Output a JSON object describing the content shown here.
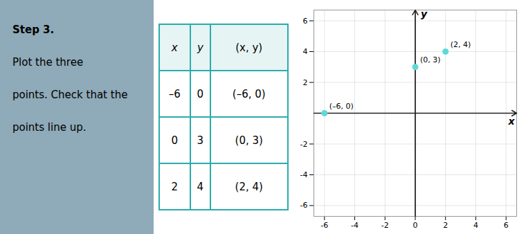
{
  "chart_data": {
    "type": "scatter",
    "x": [
      -6,
      0,
      2
    ],
    "values": [
      0,
      3,
      4
    ],
    "color": "#5dd9d9",
    "data_labels": true,
    "value_labels": [
      "(–6, 0)",
      "(0, 3)",
      "(2, 4)"
    ],
    "x_label": "x",
    "y_label": "y",
    "xlim": [
      -6.7,
      6.7
    ],
    "ylim": [
      -6.7,
      6.7
    ],
    "xticks": [
      -6,
      -4,
      -2,
      0,
      2,
      4,
      6
    ],
    "yticks": [
      -6,
      -4,
      -2,
      2,
      4,
      6
    ],
    "grid": true
  },
  "step": {
    "title": "Step 3.",
    "lines": [
      "Plot the three",
      "points. Check that the",
      "points line up."
    ],
    "background": "#8faab8"
  },
  "table": {
    "headers": [
      "x",
      "y",
      "(x, y)"
    ],
    "rows": [
      [
        "–6",
        "0",
        "(–6, 0)"
      ],
      [
        "0",
        "3",
        "(0, 3)"
      ],
      [
        "2",
        "4",
        "(2, 4)"
      ]
    ],
    "background": "#ffffff",
    "header_background": "#e6f4f4",
    "border_color": "#2aacac"
  }
}
